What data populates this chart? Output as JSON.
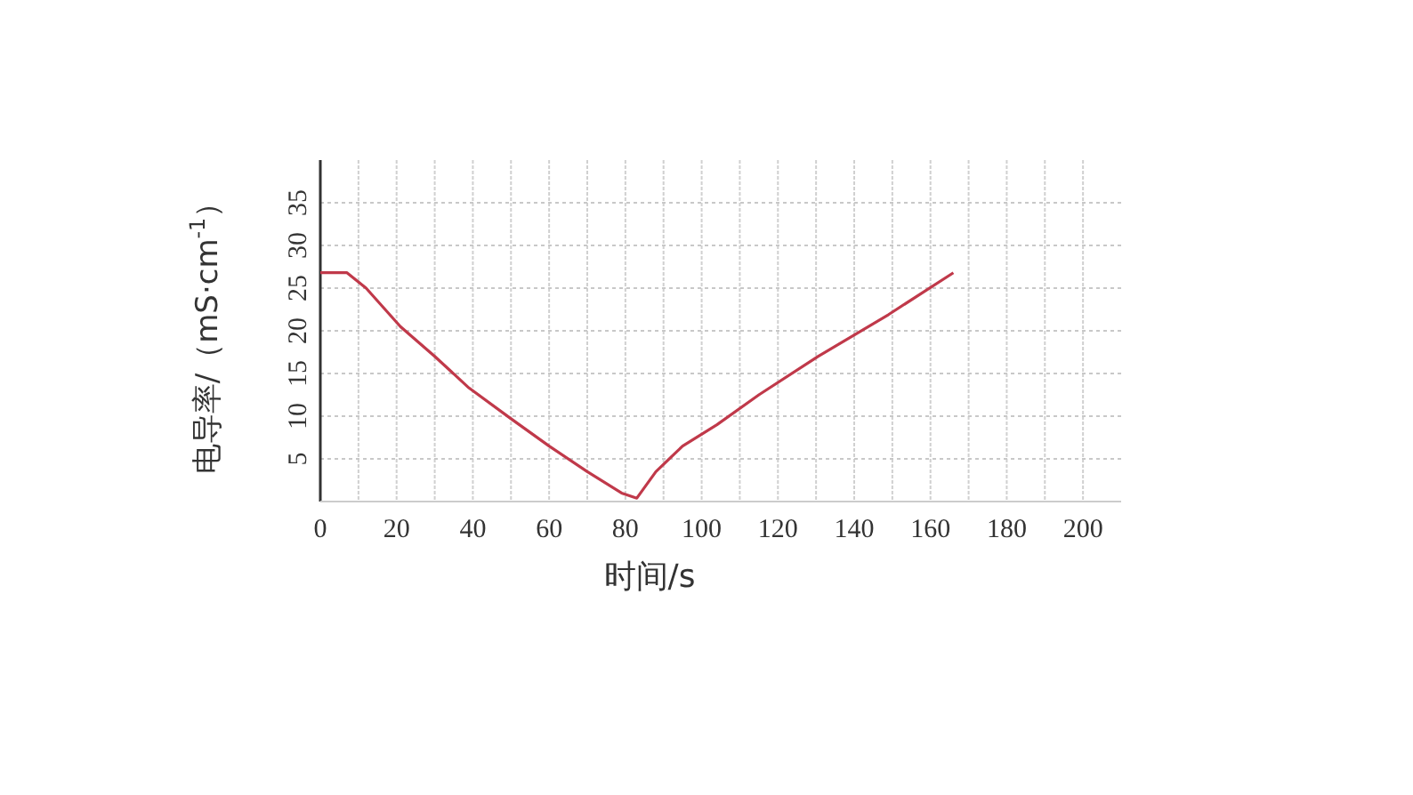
{
  "chart_data": {
    "type": "line",
    "xlabel": "时间/s",
    "ylabel": "电导率/（mS·cm$^{-1}$）",
    "x": [
      0,
      7,
      12,
      21,
      30,
      39,
      50,
      60,
      70,
      79,
      83,
      88,
      95,
      104,
      115,
      130.5,
      149,
      166
    ],
    "series": [
      {
        "color": "#c0394a",
        "values": [
          26.8,
          26.8,
          25,
          20.5,
          17,
          13.3,
          9.7,
          6.5,
          3.5,
          1,
          0.4,
          3.5,
          6.5,
          9,
          12.5,
          17,
          21.9,
          26.8
        ]
      }
    ],
    "xlim": [
      0,
      210
    ],
    "ylim": [
      0,
      40
    ],
    "xticks": [
      0,
      {
        "value": 10,
        "label": null
      },
      20,
      {
        "value": 30,
        "label": null
      },
      40,
      {
        "value": 50,
        "label": null
      },
      60,
      {
        "value": 70,
        "label": null
      },
      80,
      {
        "value": 90,
        "label": null
      },
      100,
      {
        "value": 110,
        "label": null
      },
      120,
      {
        "value": 130,
        "label": null
      },
      140,
      {
        "value": 150,
        "label": null
      },
      160,
      {
        "value": 170,
        "label": null
      },
      180,
      {
        "value": 190,
        "label": null
      },
      200
    ],
    "yticks": [
      5,
      10,
      15,
      20,
      25,
      30,
      35
    ],
    "grid": true,
    "marker": "none",
    "line_style": "solid"
  }
}
